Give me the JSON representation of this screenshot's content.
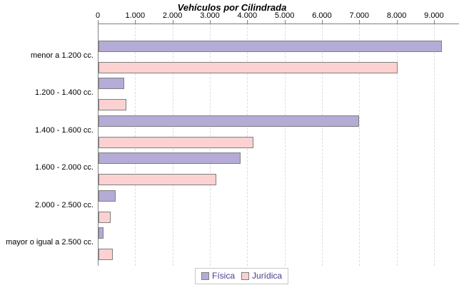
{
  "title": "Vehículos por Cilindrada",
  "chart_data": {
    "type": "bar",
    "orientation": "horizontal",
    "title": "Vehículos por Cilindrada",
    "categories": [
      "menor a 1.200 cc.",
      "1.200 - 1.400 cc.",
      "1.400 - 1.600 cc.",
      "1.600 - 2.000 cc.",
      "2.000 - 2.500 cc.",
      "mayor o igual a 2.500 cc."
    ],
    "series": [
      {
        "name": "Física",
        "color": "#b5abd7",
        "border_color": "#7f7f7f",
        "values": [
          9200,
          690,
          6970,
          3800,
          460,
          140
        ]
      },
      {
        "name": "Jurídica",
        "color": "#fcd1d2",
        "border_color": "#7f7f7f",
        "values": [
          8000,
          750,
          4150,
          3150,
          320,
          380
        ]
      }
    ],
    "x_axis": {
      "position": "top",
      "min": 0,
      "max": 9670,
      "tick_interval": 1000,
      "tick_labels": [
        "0",
        "1.000",
        "2.000",
        "3.000",
        "4.000",
        "5.000",
        "6.000",
        "7.000",
        "8.000",
        "9.000"
      ]
    },
    "grid": true,
    "gridline_style": "dashed",
    "legend_position": "bottom"
  },
  "legend": {
    "items": [
      {
        "label": "Física",
        "color": "#b5abd7"
      },
      {
        "label": "Jurídica",
        "color": "#fcd1d2"
      }
    ]
  },
  "colors": {
    "background": "#ffffff",
    "axis": "#808080",
    "grid": "#dcdcdc",
    "bar_border": "#7f7f7f",
    "title_text": "#000000",
    "label_text": "#000000",
    "legend_text": "#4a3b8c",
    "legend_border": "#c8c8c8"
  }
}
